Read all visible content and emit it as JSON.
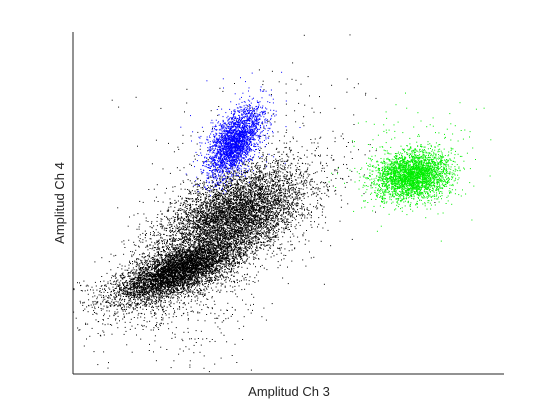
{
  "chart_data": {
    "type": "scatter",
    "title": "",
    "xlabel": "Amplitud Ch 3",
    "ylabel": "Amplitud Ch 4",
    "xlim": [
      0,
      100
    ],
    "ylim": [
      0,
      100
    ],
    "ticks_shown": false,
    "grid": false,
    "legend": "none",
    "series": [
      {
        "color": "#000000",
        "clusters": [
          {
            "cx": 24,
            "cy": 30,
            "sx": 7,
            "sy": 4.5,
            "rho": 0.7,
            "n": 5200
          },
          {
            "cx": 38,
            "cy": 47,
            "sx": 8,
            "sy": 7,
            "rho": 0.45,
            "n": 5200
          },
          {
            "cx": 30,
            "cy": 38,
            "sx": 12,
            "sy": 11,
            "rho": 0.75,
            "n": 1800
          },
          {
            "cx": 28,
            "cy": 20,
            "sx": 9,
            "sy": 9,
            "rho": 0.3,
            "n": 350
          }
        ]
      },
      {
        "color": "#0000ff",
        "clusters": [
          {
            "cx": 37.5,
            "cy": 68,
            "sx": 3.2,
            "sy": 5.2,
            "rho": 0.6,
            "n": 2600
          }
        ]
      },
      {
        "color": "#00ee00",
        "clusters": [
          {
            "cx": 78.5,
            "cy": 58,
            "sx": 4.3,
            "sy": 3.6,
            "rho": 0.15,
            "n": 3200
          }
        ]
      }
    ],
    "sparse_outliers": [
      {
        "color": "#000000",
        "cx": 45,
        "cy": 62,
        "sx": 14,
        "sy": 16,
        "n": 260
      },
      {
        "color": "#0000ff",
        "cx": 40,
        "cy": 72,
        "sx": 6,
        "sy": 8,
        "n": 80
      },
      {
        "color": "#00ee00",
        "cx": 78,
        "cy": 62,
        "sx": 8,
        "sy": 8,
        "n": 160
      }
    ]
  }
}
